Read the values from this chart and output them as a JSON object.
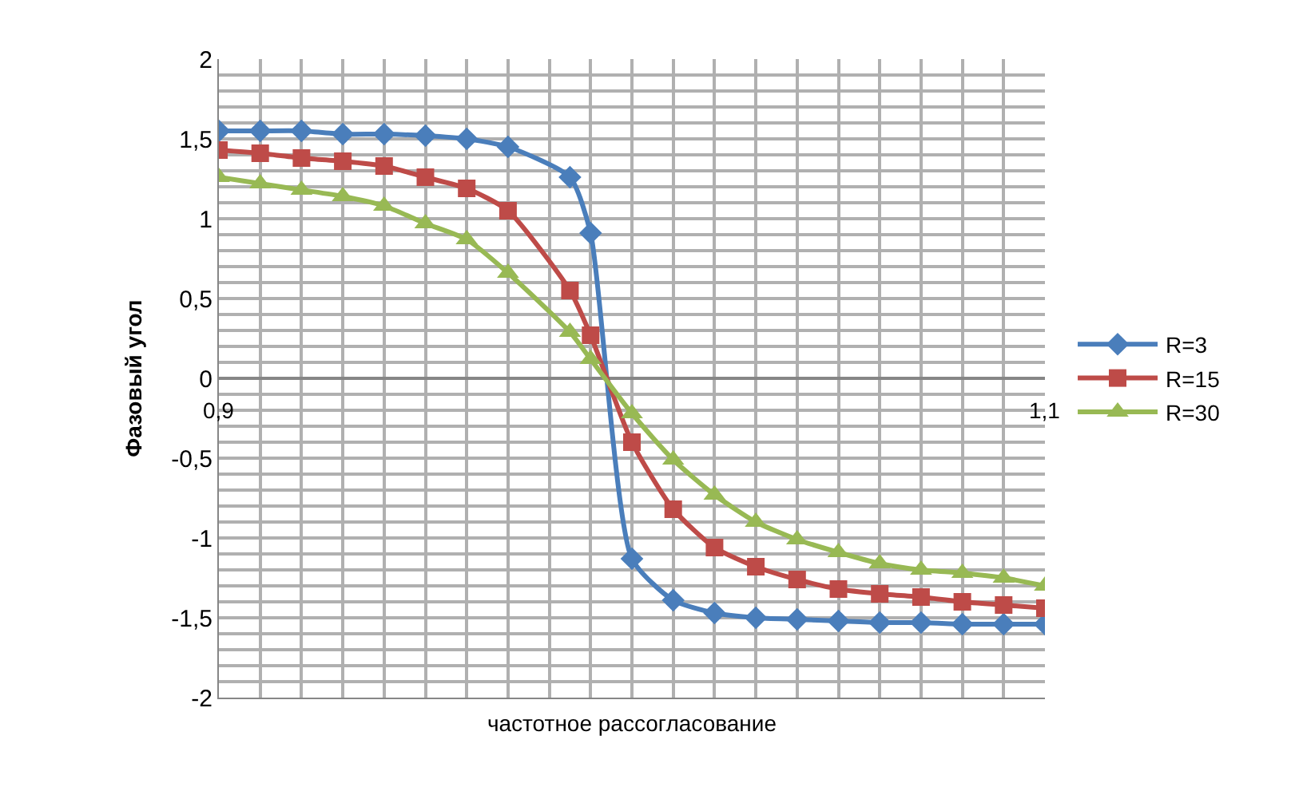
{
  "chart_data": {
    "type": "line",
    "xlabel": "частотное рассогласование",
    "ylabel": "Фазовый угол",
    "x": [
      0.9,
      0.91,
      0.92,
      0.93,
      0.94,
      0.95,
      0.96,
      0.97,
      0.985,
      0.99,
      1.0,
      1.01,
      1.02,
      1.03,
      1.04,
      1.05,
      1.06,
      1.07,
      1.08,
      1.09,
      1.1
    ],
    "series": [
      {
        "name": "R=3",
        "color": "#4a7ebb",
        "marker": "diamond",
        "values": [
          1.55,
          1.55,
          1.55,
          1.53,
          1.53,
          1.52,
          1.5,
          1.45,
          1.26,
          0.91,
          -1.13,
          -1.39,
          -1.47,
          -1.5,
          -1.51,
          -1.52,
          -1.53,
          -1.53,
          -1.54,
          -1.54,
          -1.54
        ]
      },
      {
        "name": "R=15",
        "color": "#be4b48",
        "marker": "square",
        "values": [
          1.43,
          1.41,
          1.38,
          1.36,
          1.33,
          1.26,
          1.19,
          1.05,
          0.55,
          0.27,
          -0.4,
          -0.82,
          -1.06,
          -1.18,
          -1.26,
          -1.32,
          -1.35,
          -1.37,
          -1.4,
          -1.42,
          -1.44
        ]
      },
      {
        "name": "R=30",
        "color": "#98b954",
        "marker": "triangle",
        "values": [
          1.26,
          1.22,
          1.18,
          1.14,
          1.08,
          0.97,
          0.87,
          0.66,
          0.29,
          0.12,
          -0.22,
          -0.51,
          -0.73,
          -0.9,
          -1.01,
          -1.09,
          -1.16,
          -1.2,
          -1.22,
          -1.25,
          -1.3
        ]
      }
    ],
    "xlim": [
      0.9,
      1.1
    ],
    "ylim": [
      -2,
      2
    ],
    "xticks": [
      {
        "value": 0.9,
        "label": "0,9"
      },
      {
        "value": 0.91,
        "label": null
      },
      {
        "value": 0.92,
        "label": null
      },
      {
        "value": 0.93,
        "label": null
      },
      {
        "value": 0.94,
        "label": null
      },
      {
        "value": 0.95,
        "label": null
      },
      {
        "value": 0.96,
        "label": null
      },
      {
        "value": 0.97,
        "label": null
      },
      {
        "value": 0.98,
        "label": null
      },
      {
        "value": 0.99,
        "label": null
      },
      {
        "value": 1.0,
        "label": null
      },
      {
        "value": 1.01,
        "label": null
      },
      {
        "value": 1.02,
        "label": null
      },
      {
        "value": 1.03,
        "label": null
      },
      {
        "value": 1.04,
        "label": null
      },
      {
        "value": 1.05,
        "label": null
      },
      {
        "value": 1.06,
        "label": null
      },
      {
        "value": 1.07,
        "label": null
      },
      {
        "value": 1.08,
        "label": null
      },
      {
        "value": 1.09,
        "label": null
      },
      {
        "value": 1.1,
        "label": "1,1"
      }
    ],
    "yticks": [
      -2,
      {
        "value": -1.9,
        "label": null
      },
      {
        "value": -1.8,
        "label": null
      },
      {
        "value": -1.7,
        "label": null
      },
      {
        "value": -1.6,
        "label": null
      },
      {
        "value": -1.5,
        "label": "-1,5"
      },
      {
        "value": -1.4,
        "label": null
      },
      {
        "value": -1.3,
        "label": null
      },
      {
        "value": -1.2,
        "label": null
      },
      {
        "value": -1.1,
        "label": null
      },
      -1,
      {
        "value": -0.9,
        "label": null
      },
      {
        "value": -0.8,
        "label": null
      },
      {
        "value": -0.7,
        "label": null
      },
      {
        "value": -0.6,
        "label": null
      },
      {
        "value": -0.5,
        "label": "-0,5"
      },
      {
        "value": -0.4,
        "label": null
      },
      {
        "value": -0.3,
        "label": null
      },
      {
        "value": -0.2,
        "label": null
      },
      {
        "value": -0.1,
        "label": null
      },
      0,
      {
        "value": 0.1,
        "label": null
      },
      {
        "value": 0.2,
        "label": null
      },
      {
        "value": 0.3,
        "label": null
      },
      {
        "value": 0.4,
        "label": null
      },
      {
        "value": 0.5,
        "label": "0,5"
      },
      {
        "value": 0.6,
        "label": null
      },
      {
        "value": 0.7,
        "label": null
      },
      {
        "value": 0.8,
        "label": null
      },
      {
        "value": 0.9,
        "label": null
      },
      1,
      {
        "value": 1.1,
        "label": null
      },
      {
        "value": 1.2,
        "label": null
      },
      {
        "value": 1.3,
        "label": null
      },
      {
        "value": 1.4,
        "label": null
      },
      {
        "value": 1.5,
        "label": "1,5"
      },
      {
        "value": 1.6,
        "label": null
      },
      {
        "value": 1.7,
        "label": null
      },
      {
        "value": 1.8,
        "label": null
      },
      {
        "value": 1.9,
        "label": null
      },
      2
    ],
    "grid": true,
    "legend": "right",
    "line_style": "solid"
  }
}
